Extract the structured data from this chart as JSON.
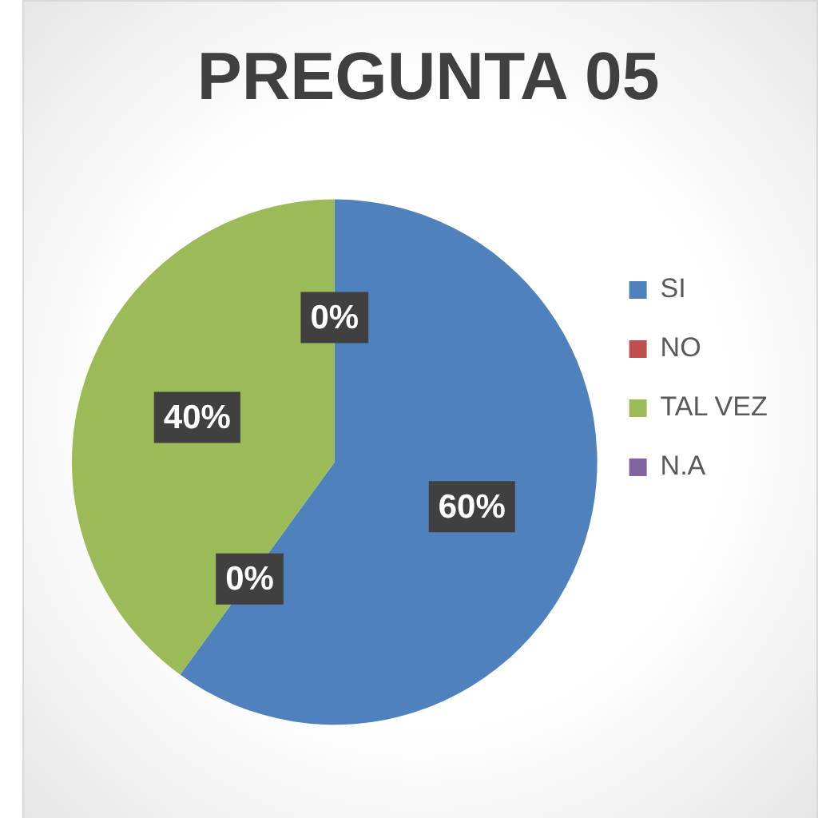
{
  "chart_data": {
    "type": "pie",
    "title": "PREGUNTA 05",
    "categories": [
      "SI",
      "NO",
      "TAL VEZ",
      "N.A"
    ],
    "values": [
      60,
      0,
      40,
      0
    ],
    "colors": [
      "#4f81bd",
      "#c0504d",
      "#9bbb59",
      "#8064a2"
    ],
    "value_labels": [
      "60%",
      "0%",
      "40%",
      "0%"
    ],
    "legend": "right"
  }
}
